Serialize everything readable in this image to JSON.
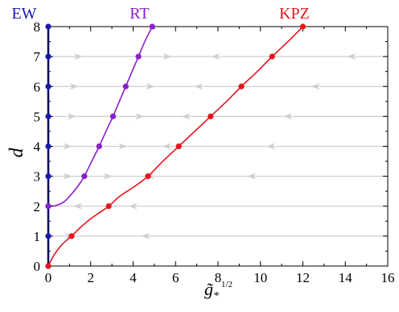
{
  "chart_data": {
    "type": "line",
    "xlabel": "g̃",
    "xlabel_sub": "*",
    "xlabel_sup": "1/2",
    "ylabel": "d",
    "xlim": [
      0,
      16
    ],
    "ylim": [
      0,
      8
    ],
    "x_ticks": [
      0,
      2,
      4,
      6,
      8,
      10,
      12,
      14,
      16
    ],
    "y_ticks": [
      0,
      1,
      2,
      3,
      4,
      5,
      6,
      7,
      8
    ],
    "grid": false,
    "flow_lines": {
      "color": "#cfcfcf",
      "levels": [
        1,
        2,
        3,
        4,
        5,
        6,
        7
      ],
      "arrows": [
        {
          "d": 1,
          "x": 1.0,
          "dir": "right"
        },
        {
          "d": 1,
          "x": 4.6,
          "dir": "left"
        },
        {
          "d": 2,
          "x": 1.4,
          "dir": "left"
        },
        {
          "d": 2,
          "x": 4.0,
          "dir": "left"
        },
        {
          "d": 3,
          "x": 0.9,
          "dir": "right"
        },
        {
          "d": 3,
          "x": 2.8,
          "dir": "right"
        },
        {
          "d": 3,
          "x": 4.8,
          "dir": "left"
        },
        {
          "d": 3,
          "x": 9.6,
          "dir": "left"
        },
        {
          "d": 4,
          "x": 0.9,
          "dir": "right"
        },
        {
          "d": 4,
          "x": 3.5,
          "dir": "right"
        },
        {
          "d": 4,
          "x": 5.6,
          "dir": "left"
        },
        {
          "d": 4,
          "x": 10.5,
          "dir": "left"
        },
        {
          "d": 5,
          "x": 1.1,
          "dir": "right"
        },
        {
          "d": 5,
          "x": 4.3,
          "dir": "right"
        },
        {
          "d": 5,
          "x": 6.5,
          "dir": "left"
        },
        {
          "d": 5,
          "x": 11.3,
          "dir": "left"
        },
        {
          "d": 6,
          "x": 1.2,
          "dir": "right"
        },
        {
          "d": 6,
          "x": 4.8,
          "dir": "right"
        },
        {
          "d": 6,
          "x": 7.1,
          "dir": "left"
        },
        {
          "d": 6,
          "x": 12.6,
          "dir": "left"
        },
        {
          "d": 7,
          "x": 1.4,
          "dir": "right"
        },
        {
          "d": 7,
          "x": 5.6,
          "dir": "right"
        },
        {
          "d": 7,
          "x": 7.9,
          "dir": "left"
        },
        {
          "d": 7,
          "x": 14.3,
          "dir": "left"
        }
      ]
    },
    "series": [
      {
        "name": "EW",
        "color": "#1a1aaa",
        "label_at": {
          "x": 0.0,
          "y": 8.3
        },
        "points": [
          [
            0,
            0
          ],
          [
            0,
            1
          ],
          [
            0,
            2
          ],
          [
            0,
            3
          ],
          [
            0,
            4
          ],
          [
            0,
            5
          ],
          [
            0,
            6
          ],
          [
            0,
            7
          ],
          [
            0,
            8
          ]
        ],
        "curve": [
          [
            0,
            0
          ],
          [
            0,
            8
          ]
        ]
      },
      {
        "name": "RT",
        "color": "#8a1ecc",
        "label_at": {
          "x": 4.3,
          "y": 8.3
        },
        "points": [
          [
            0,
            2
          ],
          [
            1.7,
            3
          ],
          [
            2.4,
            4
          ],
          [
            3.05,
            5
          ],
          [
            3.65,
            6
          ],
          [
            4.25,
            7
          ],
          [
            4.9,
            8
          ]
        ],
        "curve": [
          [
            0,
            2
          ],
          [
            0.35,
            2.02
          ],
          [
            0.75,
            2.15
          ],
          [
            1.15,
            2.45
          ],
          [
            1.45,
            2.72
          ],
          [
            1.7,
            3
          ],
          [
            2.05,
            3.5
          ],
          [
            2.4,
            4
          ],
          [
            2.72,
            4.5
          ],
          [
            3.05,
            5
          ],
          [
            3.35,
            5.5
          ],
          [
            3.65,
            6
          ],
          [
            3.95,
            6.5
          ],
          [
            4.25,
            7
          ],
          [
            4.55,
            7.5
          ],
          [
            4.9,
            8
          ]
        ]
      },
      {
        "name": "KPZ",
        "color": "#e8141c",
        "label_at": {
          "x": 11.6,
          "y": 8.3
        },
        "points": [
          [
            0,
            0
          ],
          [
            1.1,
            1
          ],
          [
            2.85,
            2
          ],
          [
            4.7,
            3
          ],
          [
            6.15,
            4
          ],
          [
            7.65,
            5
          ],
          [
            9.1,
            6
          ],
          [
            10.55,
            7
          ],
          [
            12.0,
            8
          ]
        ],
        "curve": [
          [
            0,
            0
          ],
          [
            0.3,
            0.4
          ],
          [
            0.65,
            0.72
          ],
          [
            1.1,
            1
          ],
          [
            1.5,
            1.28
          ],
          [
            2.0,
            1.58
          ],
          [
            2.45,
            1.8
          ],
          [
            2.85,
            2
          ],
          [
            3.4,
            2.35
          ],
          [
            4.05,
            2.65
          ],
          [
            4.7,
            3
          ],
          [
            5.4,
            3.5
          ],
          [
            6.15,
            4
          ],
          [
            6.9,
            4.5
          ],
          [
            7.65,
            5
          ],
          [
            8.4,
            5.5
          ],
          [
            9.1,
            6
          ],
          [
            9.85,
            6.5
          ],
          [
            10.55,
            7
          ],
          [
            11.3,
            7.5
          ],
          [
            12.0,
            8
          ]
        ]
      }
    ]
  }
}
